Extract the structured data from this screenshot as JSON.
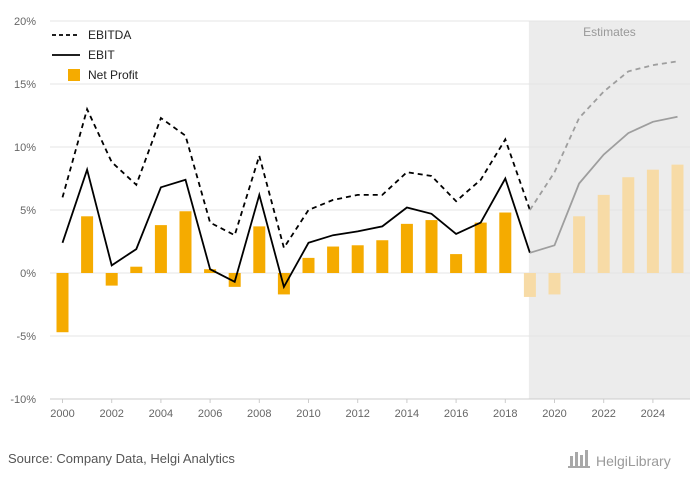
{
  "chart_data": {
    "type": "bar",
    "x": [
      2000,
      2001,
      2002,
      2003,
      2004,
      2005,
      2006,
      2007,
      2008,
      2009,
      2010,
      2011,
      2012,
      2013,
      2014,
      2015,
      2016,
      2017,
      2018,
      2019,
      2020,
      2021,
      2022,
      2023,
      2024,
      2025
    ],
    "series": [
      {
        "name": "EBITDA",
        "kind": "line",
        "style": "dashed",
        "values": [
          6.0,
          13.0,
          8.8,
          7.0,
          12.3,
          10.9,
          4.0,
          3.0,
          9.3,
          2.0,
          5.0,
          5.8,
          6.2,
          6.2,
          8.0,
          7.7,
          5.7,
          7.4,
          10.6,
          5.0,
          8.0,
          12.3,
          14.4,
          16.0,
          16.5,
          16.8
        ]
      },
      {
        "name": "EBIT",
        "kind": "line",
        "style": "solid",
        "values": [
          2.4,
          8.2,
          0.6,
          1.9,
          6.8,
          7.4,
          0.3,
          -0.7,
          6.2,
          -1.1,
          2.4,
          3.0,
          3.3,
          3.7,
          5.2,
          4.7,
          3.1,
          4.0,
          7.5,
          1.6,
          2.2,
          7.1,
          9.4,
          11.1,
          12.0,
          12.4
        ]
      },
      {
        "name": "Net Profit",
        "kind": "bar",
        "values": [
          -4.7,
          4.5,
          -1.0,
          0.5,
          3.8,
          4.9,
          0.3,
          -1.1,
          3.7,
          -1.7,
          1.2,
          2.1,
          2.2,
          2.6,
          3.9,
          4.2,
          1.5,
          4.0,
          4.8,
          -1.9,
          -1.7,
          4.5,
          6.2,
          7.6,
          8.2,
          8.6
        ]
      }
    ],
    "estimate_start": 2019,
    "estimates_label": "Estimates",
    "ylim": [
      -10,
      20
    ],
    "yticks": [
      "20%",
      "15%",
      "10%",
      "5%",
      "0%",
      "-5%",
      "-10%"
    ],
    "xticks": [
      "2000",
      "2002",
      "2004",
      "2006",
      "2008",
      "2010",
      "2012",
      "2014",
      "2016",
      "2018",
      "2020",
      "2022",
      "2024"
    ],
    "legend_position": "top-left",
    "grid": true
  },
  "footer": {
    "source": "Source: Company Data, Helgi Analytics",
    "brand": "HelgiLibrary"
  },
  "colors": {
    "bar": "#f5ab00",
    "bar_estimate": "#f7dba6",
    "line": "#000000",
    "line_estimate": "#9e9e9e",
    "estimate_bg": "#ececec",
    "grid": "#e4e4e4",
    "axis": "#cccccc"
  }
}
